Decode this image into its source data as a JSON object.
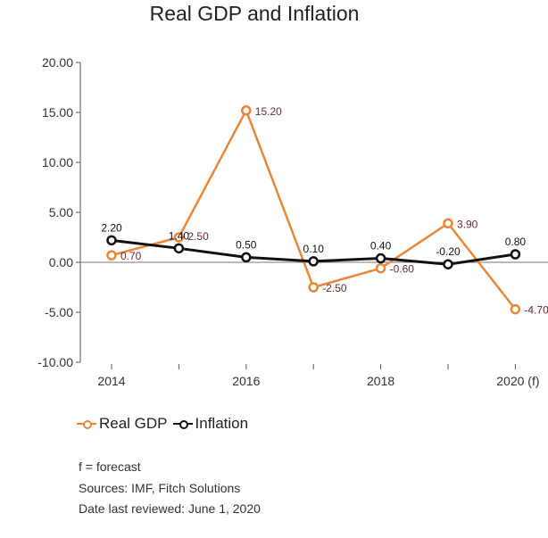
{
  "chart_data": {
    "type": "line",
    "title": "Real GDP and Inflation",
    "x": [
      2014,
      2015,
      2016,
      2017,
      2018,
      2019,
      2020
    ],
    "x_tick_labels": [
      "2014",
      "",
      "2016",
      "",
      "2018",
      "",
      "2020 (f)"
    ],
    "ylim": [
      -10,
      20
    ],
    "y_ticks": [
      "20.00",
      "15.00",
      "10.00",
      "5.00",
      "0.00",
      "-5.00",
      "-10.00"
    ],
    "y_tick_values": [
      20,
      15,
      10,
      5,
      0,
      -5,
      -10
    ],
    "grid": false,
    "legend_position": "bottom-left",
    "series": [
      {
        "name": "Real GDP",
        "color": "#e8873a",
        "label_color": "#6b2a2a",
        "values": [
          0.7,
          2.5,
          15.2,
          -2.5,
          -0.6,
          3.9,
          -4.7
        ],
        "labels": [
          "0.70",
          "2.50",
          "15.20",
          "-2.50",
          "-0.60",
          "3.90",
          "-4.70"
        ]
      },
      {
        "name": "Inflation",
        "color": "#111111",
        "label_color": "#111111",
        "values": [
          2.2,
          1.4,
          0.5,
          0.1,
          0.4,
          -0.2,
          0.8
        ],
        "labels": [
          "2.20",
          "1.40",
          "0.50",
          "0.10",
          "0.40",
          "-0.20",
          "0.80"
        ]
      }
    ]
  },
  "notes": {
    "forecast": "f = forecast",
    "sources": "Sources: IMF, Fitch Solutions",
    "reviewed": "Date last reviewed: June 1, 2020"
  }
}
